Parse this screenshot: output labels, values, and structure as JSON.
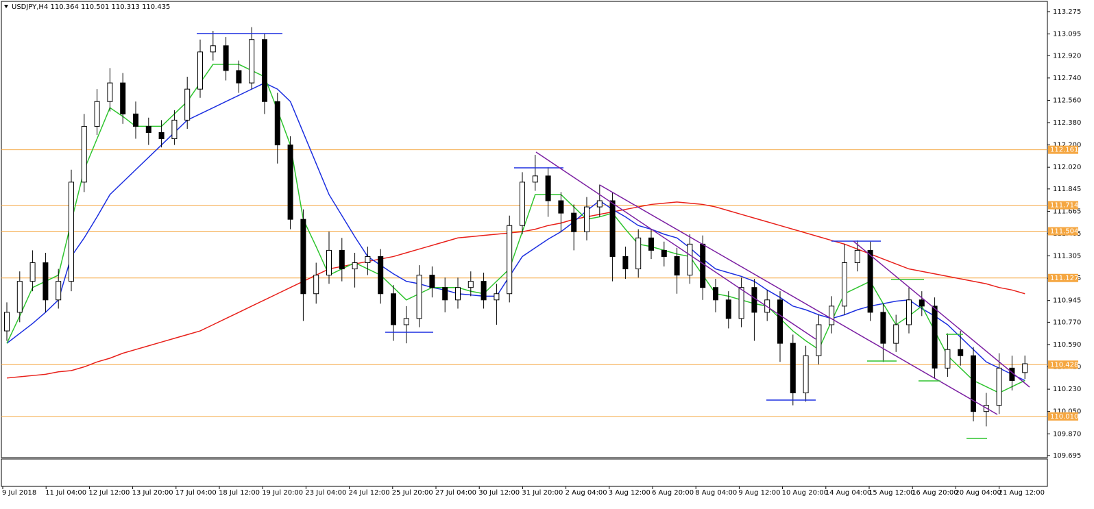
{
  "chart_data": {
    "type": "candlestick",
    "title": "USDJPY,H4  110.364 110.501 110.313 110.435",
    "ylim": [
      109.678,
      113.369
    ],
    "yticks": [
      113.275,
      113.095,
      {
        "value": 112.92,
        "label": "112.920"
      },
      {
        "value": 112.74,
        "label": "112.740"
      },
      {
        "value": 112.56,
        "label": "112.560"
      },
      {
        "value": 112.38,
        "label": "112.380"
      },
      {
        "value": 112.2,
        "label": "112.200"
      },
      {
        "value": 112.02,
        "label": "112.020"
      },
      111.845,
      111.665,
      111.485,
      111.305,
      111.125,
      110.945,
      {
        "value": 110.77,
        "label": "110.770"
      },
      {
        "value": 110.59,
        "label": "110.590"
      },
      {
        "value": 110.41,
        "label": "110.410"
      },
      {
        "value": 110.23,
        "label": "110.230"
      },
      {
        "value": 110.05,
        "label": "110.050"
      },
      {
        "value": 109.87,
        "label": "109.870"
      },
      109.695
    ],
    "levels": [
      112.161,
      111.714,
      111.504,
      111.127,
      110.428,
      {
        "value": 110.01,
        "label": "110.010"
      }
    ],
    "level_color": "#f5a742",
    "up_color": "#ffffff",
    "down_color": "#000000",
    "time_labels": [
      "9 Jul 2018",
      "11 Jul 04:00",
      "12 Jul 12:00",
      "13 Jul 20:00",
      "17 Jul 04:00",
      "18 Jul 12:00",
      "19 Jul 20:00",
      "23 Jul 04:00",
      "24 Jul 12:00",
      "25 Jul 20:00",
      "27 Jul 04:00",
      "30 Jul 12:00",
      "31 Jul 20:00",
      "2 Aug 04:00",
      "3 Aug 12:00",
      "6 Aug 20:00",
      "8 Aug 04:00",
      "9 Aug 12:00",
      "10 Aug 20:00",
      "14 Aug 04:00",
      "15 Aug 12:00",
      "16 Aug 20:00",
      "20 Aug 04:00",
      "21 Aug 12:00"
    ],
    "candles": [
      [
        110.7,
        110.93,
        110.62,
        110.85
      ],
      [
        110.85,
        111.18,
        110.77,
        111.1
      ],
      [
        111.1,
        111.35,
        111.02,
        111.25
      ],
      [
        111.25,
        111.33,
        110.85,
        110.95
      ],
      [
        110.95,
        111.2,
        110.88,
        111.1
      ],
      [
        111.1,
        112.0,
        111.02,
        111.9
      ],
      [
        111.9,
        112.45,
        111.82,
        112.35
      ],
      [
        112.35,
        112.65,
        112.28,
        112.55
      ],
      [
        112.55,
        112.82,
        112.47,
        112.7
      ],
      [
        112.7,
        112.78,
        112.37,
        112.45
      ],
      [
        112.45,
        112.55,
        112.25,
        112.35
      ],
      [
        112.35,
        112.42,
        112.2,
        112.3
      ],
      [
        112.3,
        112.4,
        112.18,
        112.25
      ],
      [
        112.25,
        112.48,
        112.2,
        112.4
      ],
      [
        112.4,
        112.75,
        112.33,
        112.65
      ],
      [
        112.65,
        113.05,
        112.58,
        112.95
      ],
      [
        112.95,
        113.12,
        112.88,
        113.0
      ],
      [
        113.0,
        113.07,
        112.72,
        112.8
      ],
      [
        112.8,
        112.88,
        112.62,
        112.7
      ],
      [
        112.7,
        113.15,
        112.65,
        113.05
      ],
      [
        113.05,
        113.1,
        112.45,
        112.55
      ],
      [
        112.55,
        112.62,
        112.05,
        112.2
      ],
      [
        112.2,
        112.27,
        111.52,
        111.6
      ],
      [
        111.6,
        111.68,
        110.78,
        111.0
      ],
      [
        111.0,
        111.25,
        110.92,
        111.15
      ],
      [
        111.15,
        111.5,
        111.08,
        111.35
      ],
      [
        111.35,
        111.45,
        111.1,
        111.2
      ],
      [
        111.2,
        111.33,
        111.05,
        111.25
      ],
      [
        111.25,
        111.38,
        111.15,
        111.3
      ],
      [
        111.3,
        111.36,
        110.92,
        111.0
      ],
      [
        111.0,
        111.07,
        110.62,
        110.75
      ],
      [
        110.75,
        110.9,
        110.6,
        110.8
      ],
      [
        110.8,
        111.23,
        110.73,
        111.15
      ],
      [
        111.15,
        111.22,
        110.97,
        111.05
      ],
      [
        111.05,
        111.13,
        110.85,
        110.95
      ],
      [
        110.95,
        111.13,
        110.88,
        111.05
      ],
      [
        111.05,
        111.18,
        110.98,
        111.1
      ],
      [
        111.1,
        111.17,
        110.88,
        110.95
      ],
      [
        110.95,
        111.08,
        110.75,
        111.0
      ],
      [
        111.0,
        111.63,
        110.93,
        111.55
      ],
      [
        111.55,
        111.98,
        111.48,
        111.9
      ],
      [
        111.9,
        112.12,
        111.83,
        111.95
      ],
      [
        111.95,
        112.02,
        111.62,
        111.75
      ],
      [
        111.75,
        111.82,
        111.5,
        111.65
      ],
      [
        111.65,
        111.72,
        111.35,
        111.5
      ],
      [
        111.5,
        111.78,
        111.43,
        111.7
      ],
      [
        111.7,
        111.88,
        111.62,
        111.75
      ],
      [
        111.75,
        111.82,
        111.1,
        111.3
      ],
      [
        111.3,
        111.38,
        111.12,
        111.2
      ],
      [
        111.2,
        111.52,
        111.13,
        111.45
      ],
      [
        111.45,
        111.52,
        111.28,
        111.35
      ],
      [
        111.35,
        111.42,
        111.22,
        111.3
      ],
      [
        111.3,
        111.37,
        111.0,
        111.15
      ],
      [
        111.15,
        111.48,
        111.08,
        111.4
      ],
      [
        111.4,
        111.47,
        110.95,
        111.05
      ],
      [
        111.05,
        111.12,
        110.85,
        110.95
      ],
      [
        110.95,
        111.02,
        110.72,
        110.8
      ],
      [
        110.8,
        111.13,
        110.73,
        111.05
      ],
      [
        111.05,
        111.12,
        110.62,
        110.85
      ],
      [
        110.85,
        111.03,
        110.78,
        110.95
      ],
      [
        110.95,
        111.02,
        110.45,
        110.6
      ],
      [
        110.6,
        110.67,
        110.1,
        110.2
      ],
      [
        110.2,
        110.58,
        110.13,
        110.5
      ],
      [
        110.5,
        110.83,
        110.43,
        110.75
      ],
      [
        110.75,
        110.98,
        110.68,
        110.9
      ],
      [
        110.9,
        111.4,
        110.83,
        111.25
      ],
      [
        111.25,
        111.43,
        111.18,
        111.35
      ],
      [
        111.35,
        111.42,
        110.78,
        110.85
      ],
      [
        110.85,
        110.92,
        110.45,
        110.6
      ],
      [
        110.6,
        110.83,
        110.53,
        110.75
      ],
      [
        110.75,
        111.05,
        110.68,
        110.95
      ],
      [
        110.95,
        111.02,
        110.82,
        110.9
      ],
      [
        110.9,
        110.97,
        110.32,
        110.4
      ],
      [
        110.4,
        110.68,
        110.33,
        110.55
      ],
      [
        110.55,
        110.7,
        110.42,
        110.5
      ],
      [
        110.5,
        110.57,
        109.97,
        110.05
      ],
      [
        110.05,
        110.2,
        109.93,
        110.1
      ],
      [
        110.1,
        110.52,
        110.03,
        110.4
      ],
      [
        110.4,
        110.5,
        110.22,
        110.3
      ],
      [
        110.364,
        110.501,
        110.313,
        110.435
      ]
    ],
    "indicators": [
      {
        "color": "#e8201a",
        "values": [
          110.32,
          110.33,
          110.34,
          110.35,
          110.37,
          110.38,
          110.41,
          110.45,
          110.48,
          110.52,
          110.55,
          110.58,
          110.61,
          110.64,
          110.67,
          110.7,
          110.75,
          110.8,
          110.85,
          110.9,
          110.95,
          111.0,
          111.05,
          111.1,
          111.15,
          111.2,
          111.22,
          111.24,
          111.26,
          111.28,
          111.3,
          111.33,
          111.36,
          111.39,
          111.42,
          111.45,
          111.46,
          111.47,
          111.48,
          111.49,
          111.5,
          111.52,
          111.55,
          111.57,
          111.6,
          111.62,
          111.64,
          111.66,
          111.68,
          111.7,
          111.72,
          111.73,
          111.74,
          111.73,
          111.72,
          111.7,
          111.67,
          111.64,
          111.61,
          111.58,
          111.55,
          111.52,
          111.49,
          111.46,
          111.43,
          111.4,
          111.36,
          111.32,
          111.28,
          111.24,
          111.2,
          111.18,
          111.16,
          111.14,
          111.12,
          111.1,
          111.08,
          111.05,
          111.03,
          111.0
        ]
      },
      {
        "color": "#1c2fe0",
        "values": [
          110.6,
          110.68,
          110.76,
          110.85,
          110.95,
          111.3,
          111.45,
          111.62,
          111.8,
          111.9,
          112.0,
          112.1,
          112.2,
          112.3,
          112.4,
          112.45,
          112.5,
          112.55,
          112.6,
          112.65,
          112.7,
          112.65,
          112.55,
          112.3,
          112.05,
          111.8,
          111.63,
          111.46,
          111.3,
          111.23,
          111.16,
          111.1,
          111.08,
          111.05,
          111.03,
          111.0,
          110.99,
          110.98,
          110.98,
          111.14,
          111.3,
          111.37,
          111.44,
          111.5,
          111.58,
          111.67,
          111.75,
          111.68,
          111.62,
          111.55,
          111.52,
          111.48,
          111.45,
          111.37,
          111.28,
          111.2,
          111.17,
          111.14,
          111.1,
          111.03,
          110.97,
          110.9,
          110.87,
          110.83,
          110.8,
          110.83,
          110.87,
          110.9,
          110.92,
          110.94,
          110.95,
          110.88,
          110.82,
          110.75,
          110.65,
          110.55,
          110.45,
          110.4,
          110.35,
          110.3
        ]
      },
      {
        "color": "#2ec42e",
        "values": [
          110.6,
          110.82,
          111.05,
          111.1,
          111.15,
          111.58,
          112.0,
          112.25,
          112.5,
          112.43,
          112.35,
          112.35,
          112.35,
          112.45,
          112.55,
          112.7,
          112.85,
          112.85,
          112.85,
          112.8,
          112.75,
          112.48,
          112.2,
          111.6,
          111.38,
          111.15,
          111.2,
          111.25,
          111.2,
          111.15,
          111.05,
          110.95,
          111.0,
          111.05,
          111.05,
          111.05,
          111.02,
          111.0,
          111.1,
          111.2,
          111.5,
          111.8,
          111.8,
          111.8,
          111.7,
          111.6,
          111.62,
          111.65,
          111.52,
          111.4,
          111.38,
          111.35,
          111.32,
          111.3,
          111.15,
          111.0,
          110.98,
          110.95,
          110.92,
          110.9,
          110.8,
          110.7,
          110.62,
          110.55,
          110.78,
          111.0,
          111.05,
          111.1,
          110.92,
          110.75,
          110.82,
          110.9,
          110.7,
          110.5,
          110.4,
          110.3,
          110.25,
          110.2,
          110.25,
          110.3
        ]
      }
    ]
  }
}
